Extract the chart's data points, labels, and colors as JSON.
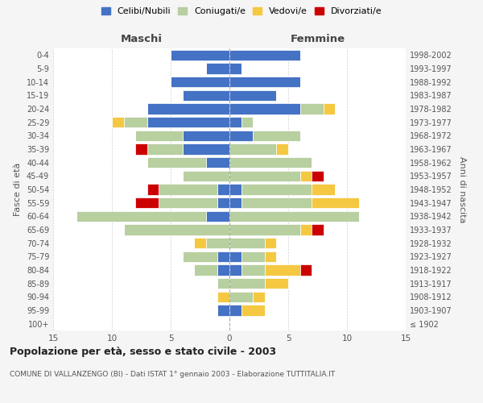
{
  "age_groups": [
    "100+",
    "95-99",
    "90-94",
    "85-89",
    "80-84",
    "75-79",
    "70-74",
    "65-69",
    "60-64",
    "55-59",
    "50-54",
    "45-49",
    "40-44",
    "35-39",
    "30-34",
    "25-29",
    "20-24",
    "15-19",
    "10-14",
    "5-9",
    "0-4"
  ],
  "birth_years": [
    "≤ 1902",
    "1903-1907",
    "1908-1912",
    "1913-1917",
    "1918-1922",
    "1923-1927",
    "1928-1932",
    "1933-1937",
    "1938-1942",
    "1943-1947",
    "1948-1952",
    "1953-1957",
    "1958-1962",
    "1963-1967",
    "1968-1972",
    "1973-1977",
    "1978-1982",
    "1983-1987",
    "1988-1992",
    "1993-1997",
    "1998-2002"
  ],
  "maschi": {
    "celibi": [
      0,
      1,
      0,
      0,
      1,
      1,
      0,
      0,
      2,
      1,
      1,
      0,
      2,
      4,
      4,
      7,
      7,
      4,
      5,
      2,
      5
    ],
    "coniugati": [
      0,
      0,
      0,
      1,
      2,
      3,
      2,
      9,
      11,
      5,
      5,
      4,
      5,
      3,
      4,
      2,
      0,
      0,
      0,
      0,
      0
    ],
    "vedovi": [
      0,
      0,
      1,
      0,
      0,
      0,
      1,
      0,
      0,
      0,
      0,
      0,
      0,
      0,
      0,
      1,
      0,
      0,
      0,
      0,
      0
    ],
    "divorziati": [
      0,
      0,
      0,
      0,
      0,
      0,
      0,
      0,
      0,
      2,
      1,
      0,
      0,
      1,
      0,
      0,
      0,
      0,
      0,
      0,
      0
    ]
  },
  "femmine": {
    "nubili": [
      0,
      1,
      0,
      0,
      1,
      1,
      0,
      0,
      0,
      1,
      1,
      0,
      0,
      0,
      2,
      1,
      6,
      4,
      6,
      1,
      6
    ],
    "coniugate": [
      0,
      0,
      2,
      3,
      2,
      2,
      3,
      6,
      11,
      6,
      6,
      6,
      7,
      4,
      4,
      1,
      2,
      0,
      0,
      0,
      0
    ],
    "vedove": [
      0,
      2,
      1,
      2,
      3,
      1,
      1,
      1,
      0,
      4,
      2,
      1,
      0,
      1,
      0,
      0,
      1,
      0,
      0,
      0,
      0
    ],
    "divorziate": [
      0,
      0,
      0,
      0,
      1,
      0,
      0,
      1,
      0,
      0,
      0,
      1,
      0,
      0,
      0,
      0,
      0,
      0,
      0,
      0,
      0
    ]
  },
  "colors": {
    "celibi": "#4472c4",
    "coniugati": "#b8cfa0",
    "vedovi": "#f5c842",
    "divorziati": "#cc0000"
  },
  "xlim": 15,
  "title": "Popolazione per età, sesso e stato civile - 2003",
  "subtitle": "COMUNE DI VALLANZENGO (BI) - Dati ISTAT 1° gennaio 2003 - Elaborazione TUTTITALIA.IT",
  "ylabel_left": "Fasce di età",
  "ylabel_right": "Anni di nascita",
  "xlabel_maschi": "Maschi",
  "xlabel_femmine": "Femmine",
  "legend_labels": [
    "Celibi/Nubili",
    "Coniugati/e",
    "Vedovi/e",
    "Divorziati/e"
  ],
  "bg_color": "#f5f5f5",
  "plot_bg": "#ffffff"
}
